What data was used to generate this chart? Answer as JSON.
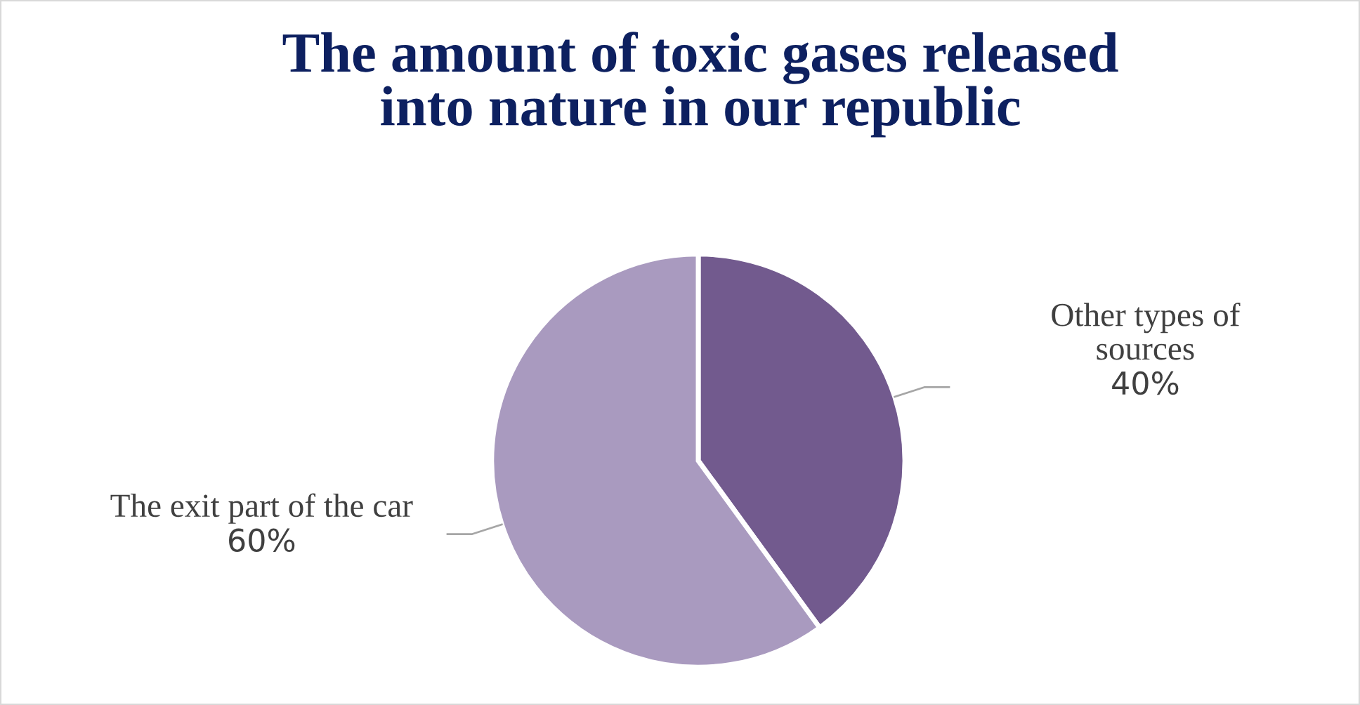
{
  "chart_data": {
    "type": "pie",
    "title": "The amount of toxic gases released\ninto nature in our republic",
    "categories": [
      "Other types of\nsources",
      "The exit part of the car"
    ],
    "values": [
      40,
      60
    ],
    "colors": [
      "#725a8e",
      "#a99abf"
    ],
    "value_labels": [
      "40%",
      "60%"
    ],
    "legend": false
  }
}
